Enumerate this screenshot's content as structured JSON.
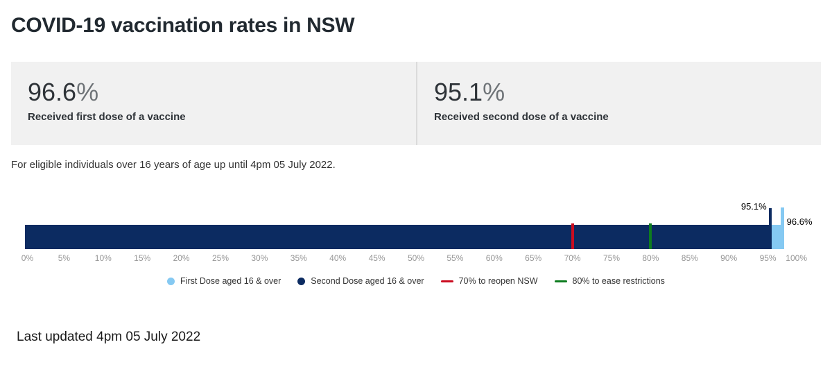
{
  "title": "COVID-19 vaccination rates in NSW",
  "stat_cards": [
    {
      "value": "96.6",
      "suffix": "%",
      "label": "Received first dose of a vaccine"
    },
    {
      "value": "95.1",
      "suffix": "%",
      "label": "Received second dose of a vaccine"
    }
  ],
  "note": "For eligible individuals over 16 years of age up until 4pm 05 July 2022.",
  "footer": {
    "last_updated": "Last updated 4pm 05 July 2022"
  },
  "colors": {
    "first_dose": "#85C9F2",
    "second_dose": "#0C2B61",
    "reopen_line": "#CB0D20",
    "ease_line": "#0E7C1F",
    "axis_text": "#969696",
    "card_background": "#F1F1F1"
  },
  "chart_data": {
    "type": "bar",
    "orientation": "horizontal",
    "grid": false,
    "legend_position": "bottom-center",
    "series": [
      {
        "name": "First Dose aged 16 & over",
        "value": 96.6,
        "label": "96.6%",
        "color_key": "first_dose"
      },
      {
        "name": "Second Dose aged 16 & over",
        "value": 95.1,
        "label": "95.1%",
        "color_key": "second_dose"
      }
    ],
    "threshold_lines": [
      {
        "name": "70% to reopen NSW",
        "value": 70,
        "color_key": "reopen_line"
      },
      {
        "name": "80% to ease restrictions",
        "value": 80,
        "color_key": "ease_line"
      }
    ],
    "x_axis": {
      "min": 0,
      "max": 100,
      "tick_step": 5,
      "tick_labels": [
        "0%",
        "5%",
        "10%",
        "15%",
        "20%",
        "25%",
        "30%",
        "35%",
        "40%",
        "45%",
        "50%",
        "55%",
        "60%",
        "65%",
        "70%",
        "75%",
        "80%",
        "85%",
        "90%",
        "95%",
        "100%"
      ]
    },
    "legend": [
      {
        "label": "First Dose aged 16 & over",
        "marker": "circle",
        "color_key": "first_dose"
      },
      {
        "label": "Second Dose aged 16 & over",
        "marker": "circle",
        "color_key": "second_dose"
      },
      {
        "label": "70% to reopen NSW",
        "marker": "line",
        "color_key": "reopen_line"
      },
      {
        "label": "80% to ease restrictions",
        "marker": "line",
        "color_key": "ease_line"
      }
    ]
  }
}
